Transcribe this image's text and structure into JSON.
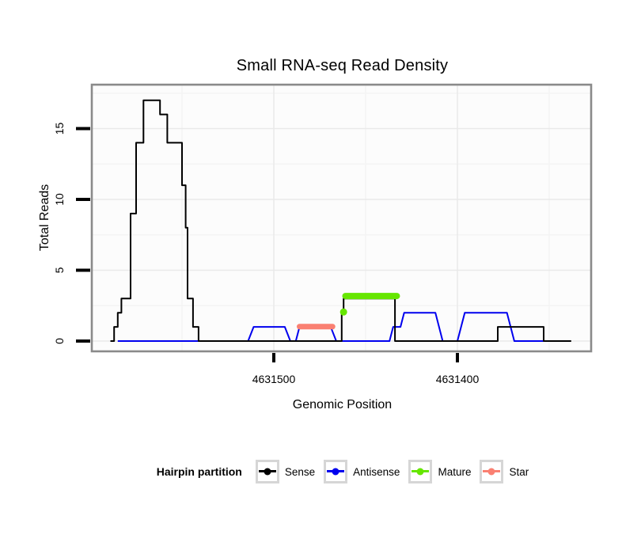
{
  "figure": {
    "title": "Small RNA-seq Read Density",
    "x_label": "Genomic Position",
    "y_label": "Total Reads"
  },
  "legend": {
    "title": "Hairpin partition",
    "items": [
      {
        "label": "Sense",
        "color": "#000000"
      },
      {
        "label": "Antisense",
        "color": "#0000EE"
      },
      {
        "label": "Mature",
        "color": "#66E600"
      },
      {
        "label": "Star",
        "color": "#FA8072"
      }
    ]
  },
  "chart_data": {
    "type": "line",
    "subtype": "step-coverage",
    "title": "Small RNA-seq Read Density",
    "xlabel": "Genomic Position",
    "ylabel": "Total Reads",
    "grid": "on",
    "legend_position": "bottom",
    "x_axis": {
      "reversed": true,
      "range": [
        4631598,
        4631327
      ],
      "tick_values": [
        4631500,
        4631400
      ],
      "tick_labels": [
        "4631500",
        "4631400"
      ]
    },
    "y_axis": {
      "range": [
        0,
        18.1
      ],
      "tick_values": [
        0,
        5,
        10,
        15
      ],
      "tick_labels": [
        "0",
        "5",
        "10",
        "15"
      ]
    },
    "series": [
      {
        "name": "Antisense",
        "color": "#0000EE",
        "linewidth": 2,
        "points": [
          [
            4631585,
            0
          ],
          [
            4631514,
            0
          ],
          [
            4631511,
            1
          ],
          [
            4631494,
            1
          ],
          [
            4631491,
            0
          ],
          [
            4631488,
            0
          ],
          [
            4631486,
            1
          ],
          [
            4631469,
            1
          ],
          [
            4631466,
            0
          ],
          [
            4631437,
            0
          ],
          [
            4631435,
            1
          ],
          [
            4631431,
            1
          ],
          [
            4631429,
            2
          ],
          [
            4631412,
            2
          ],
          [
            4631408,
            0
          ],
          [
            4631400,
            0
          ],
          [
            4631396,
            2
          ],
          [
            4631373,
            2
          ],
          [
            4631369,
            0
          ],
          [
            4631341,
            0
          ]
        ]
      },
      {
        "name": "Sense",
        "color": "#000000",
        "linewidth": 2,
        "points": [
          [
            4631589,
            0
          ],
          [
            4631587,
            0
          ],
          [
            4631587,
            1
          ],
          [
            4631585,
            1
          ],
          [
            4631585,
            2
          ],
          [
            4631583,
            2
          ],
          [
            4631583,
            3
          ],
          [
            4631578,
            3
          ],
          [
            4631578,
            9
          ],
          [
            4631575,
            9
          ],
          [
            4631575,
            14
          ],
          [
            4631571,
            14
          ],
          [
            4631571,
            17
          ],
          [
            4631562,
            17
          ],
          [
            4631562,
            16
          ],
          [
            4631558,
            16
          ],
          [
            4631558,
            14
          ],
          [
            4631550,
            14
          ],
          [
            4631550,
            11
          ],
          [
            4631548,
            11
          ],
          [
            4631548,
            8
          ],
          [
            4631547,
            8
          ],
          [
            4631547,
            3
          ],
          [
            4631544,
            3
          ],
          [
            4631544,
            1
          ],
          [
            4631541,
            1
          ],
          [
            4631541,
            0
          ],
          [
            4631463,
            0
          ],
          [
            4631463,
            2
          ],
          [
            4631462,
            2
          ],
          [
            4631462,
            3
          ],
          [
            4631434,
            3
          ],
          [
            4631434,
            0
          ],
          [
            4631378,
            0
          ],
          [
            4631378,
            1
          ],
          [
            4631353,
            1
          ],
          [
            4631353,
            0
          ],
          [
            4631338,
            0
          ]
        ]
      }
    ],
    "overlays": [
      {
        "name": "Star",
        "kind": "segment",
        "color": "#FA8072",
        "x1": 4631486,
        "x2": 4631468,
        "y": 1.02,
        "width": 7
      },
      {
        "name": "Mature",
        "kind": "point",
        "color": "#66E600",
        "x": 4631462,
        "y": 2.05,
        "radius": 4.5
      },
      {
        "name": "Mature",
        "kind": "segment",
        "color": "#66E600",
        "x1": 4631461,
        "x2": 4631433,
        "y": 3.18,
        "width": 8
      }
    ],
    "panel": {
      "background": "#FCFCFC",
      "border_color": "#8A8A8A",
      "grid_major_color": "#E9E9E9",
      "grid_minor_color": "#F3F3F3"
    }
  }
}
